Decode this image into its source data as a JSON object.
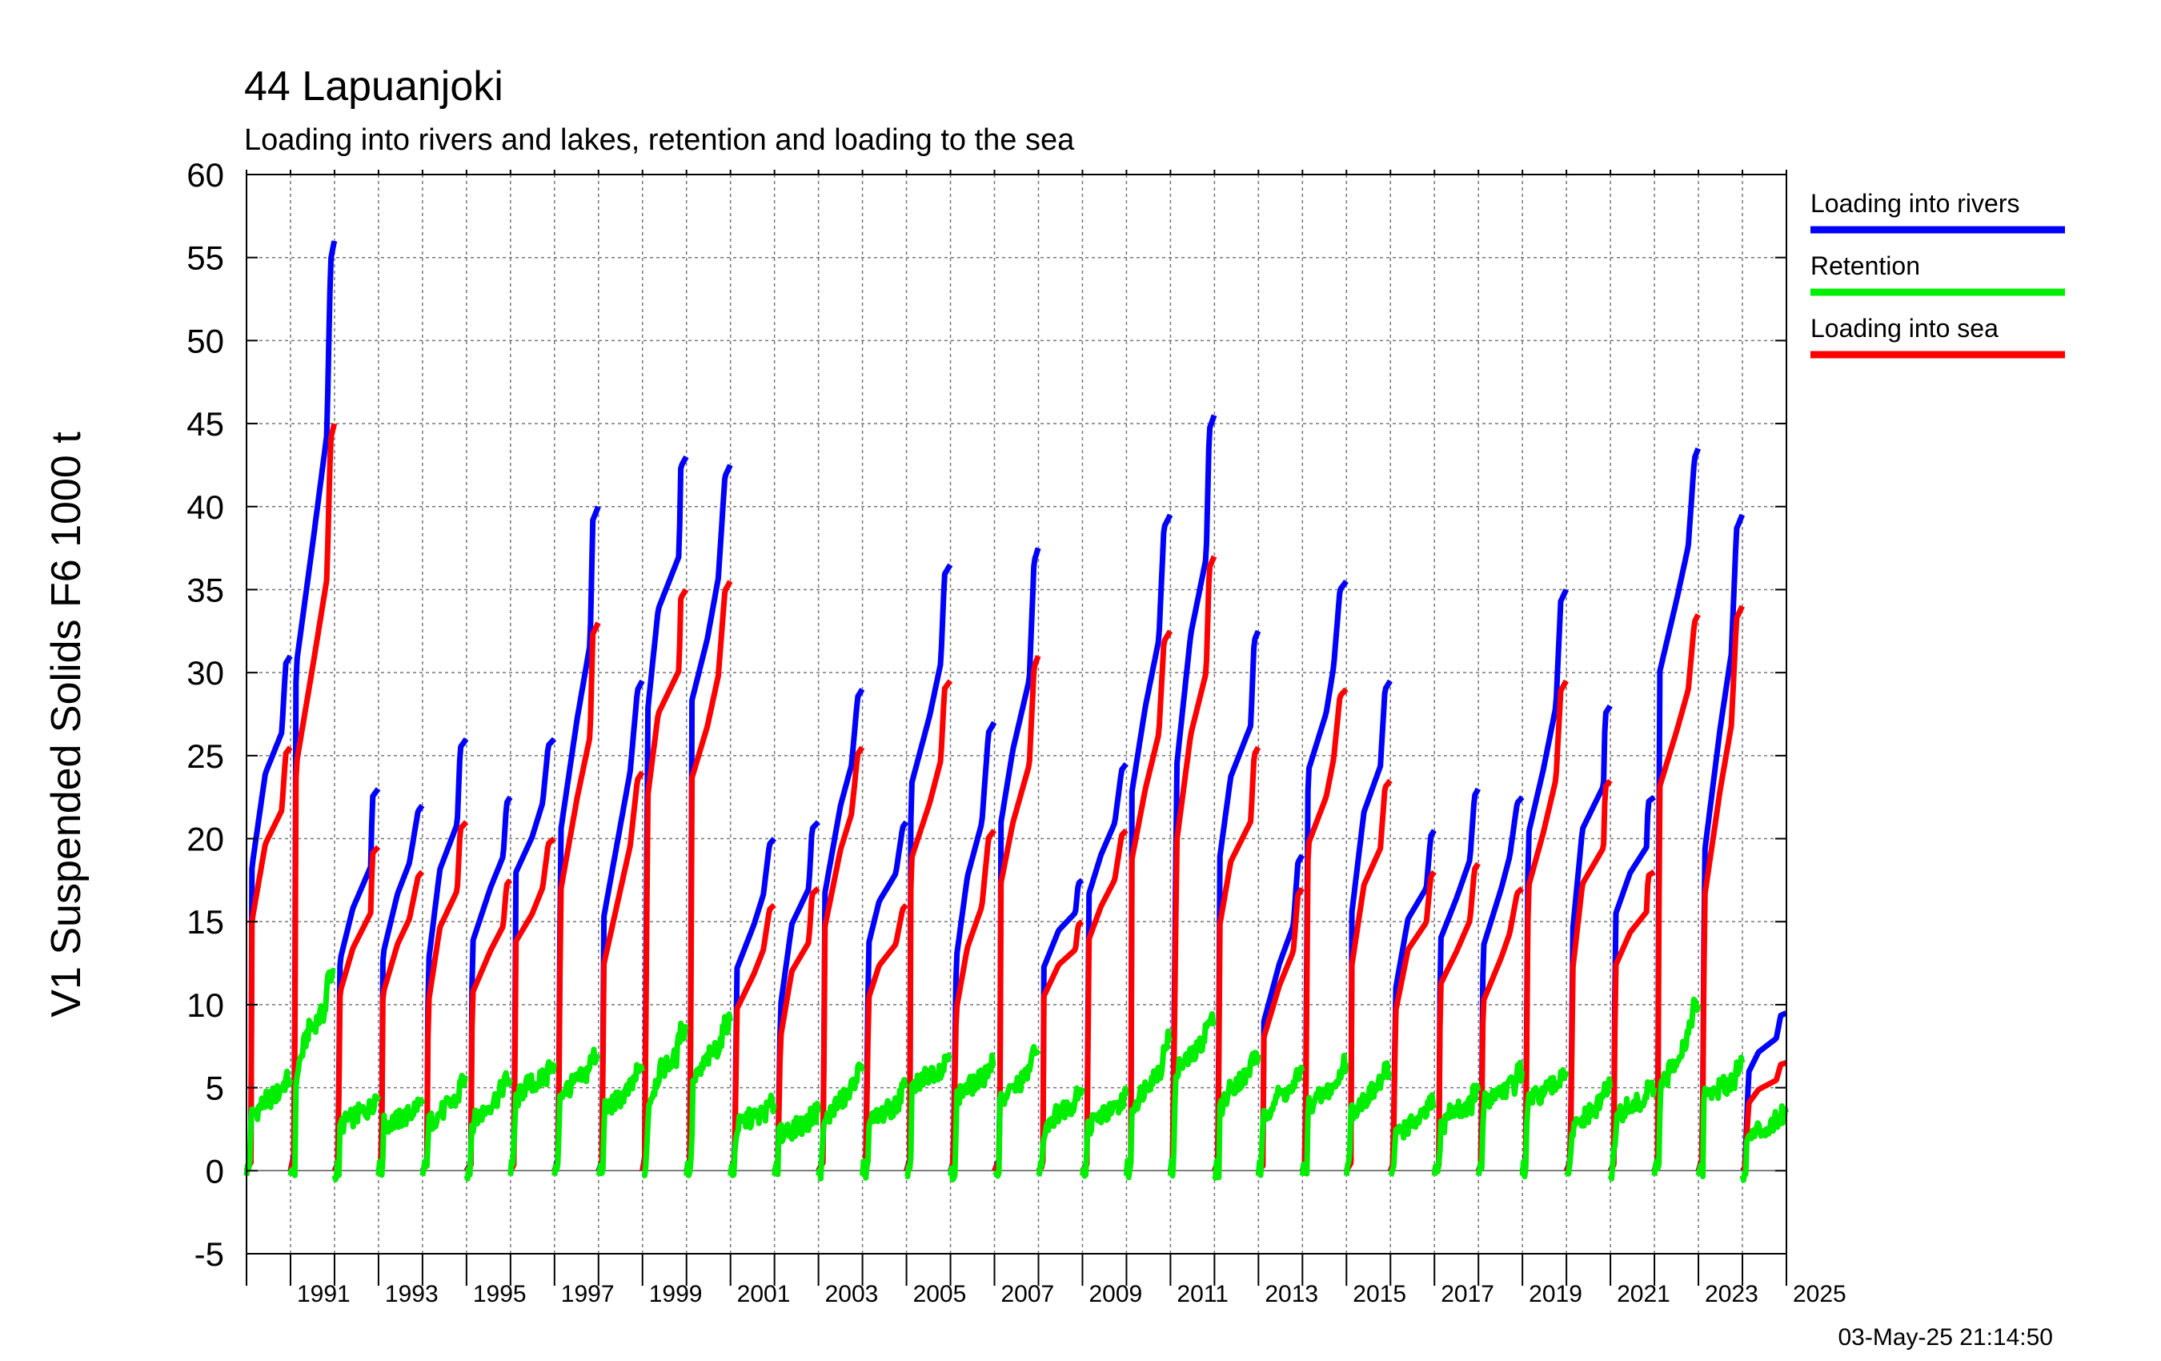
{
  "chart_data": {
    "type": "line",
    "title": "44 Lapuanjoki",
    "subtitle": "Loading into rivers and lakes, retention and loading to the sea",
    "ylabel": "V1 Suspended Solids F6 1000 t",
    "xlabel": "",
    "ylim": [
      -5,
      60
    ],
    "xlim": [
      1990,
      2025
    ],
    "yticks": [
      "60",
      "55",
      "50",
      "45",
      "40",
      "35",
      "30",
      "25",
      "20",
      "15",
      "10",
      "5",
      "0",
      "-5"
    ],
    "xtick_labels": [
      "1991",
      "1993",
      "1995",
      "1997",
      "1999",
      "2001",
      "2003",
      "2005",
      "2007",
      "2009",
      "2011",
      "2013",
      "2015",
      "2017",
      "2019",
      "2021",
      "2023",
      "2025"
    ],
    "grid": true,
    "legend_position": "right",
    "timestamp": "03-May-25 21:14:50",
    "years": [
      1990,
      1991,
      1992,
      1993,
      1994,
      1995,
      1996,
      1997,
      1998,
      1999,
      2000,
      2001,
      2002,
      2003,
      2004,
      2005,
      2006,
      2007,
      2008,
      2009,
      2010,
      2011,
      2012,
      2013,
      2014,
      2015,
      2016,
      2017,
      2018,
      2019,
      2020,
      2021,
      2022,
      2023,
      2024
    ],
    "series": [
      {
        "name": "Loading into rivers",
        "color": "#0000ff",
        "annual_totals": [
          31,
          56,
          23,
          22,
          26,
          22.5,
          26,
          40,
          29.5,
          43,
          42.5,
          20,
          21,
          29,
          21,
          36.5,
          27,
          37.5,
          17.5,
          24.5,
          39.5,
          45.5,
          32.5,
          19,
          35.5,
          29.5,
          20.5,
          23,
          22.5,
          35,
          28,
          22.5,
          43.5,
          39.5,
          9.5
        ]
      },
      {
        "name": "Retention",
        "color": "#00ee00",
        "annual_totals": [
          5.5,
          12,
          4.5,
          4,
          5.5,
          5.5,
          6.5,
          7,
          6,
          8.5,
          9,
          4,
          3.5,
          6,
          5,
          7,
          6.5,
          7,
          5,
          4.5,
          8,
          9,
          7,
          6,
          6.5,
          6,
          4,
          4.8,
          6,
          6,
          5,
          5,
          10,
          6.5,
          3.5
        ]
      },
      {
        "name": "Loading into sea",
        "color": "#ff0000",
        "annual_totals": [
          25.5,
          45,
          19.5,
          18,
          21,
          17.5,
          20,
          33,
          24,
          35,
          35.5,
          16,
          17,
          25.5,
          16,
          29.5,
          20.5,
          31,
          15,
          20.5,
          32.5,
          37,
          25.5,
          17,
          29,
          23.5,
          18,
          18.5,
          17,
          29.5,
          23.5,
          18,
          33.5,
          34,
          6.5
        ]
      }
    ]
  }
}
